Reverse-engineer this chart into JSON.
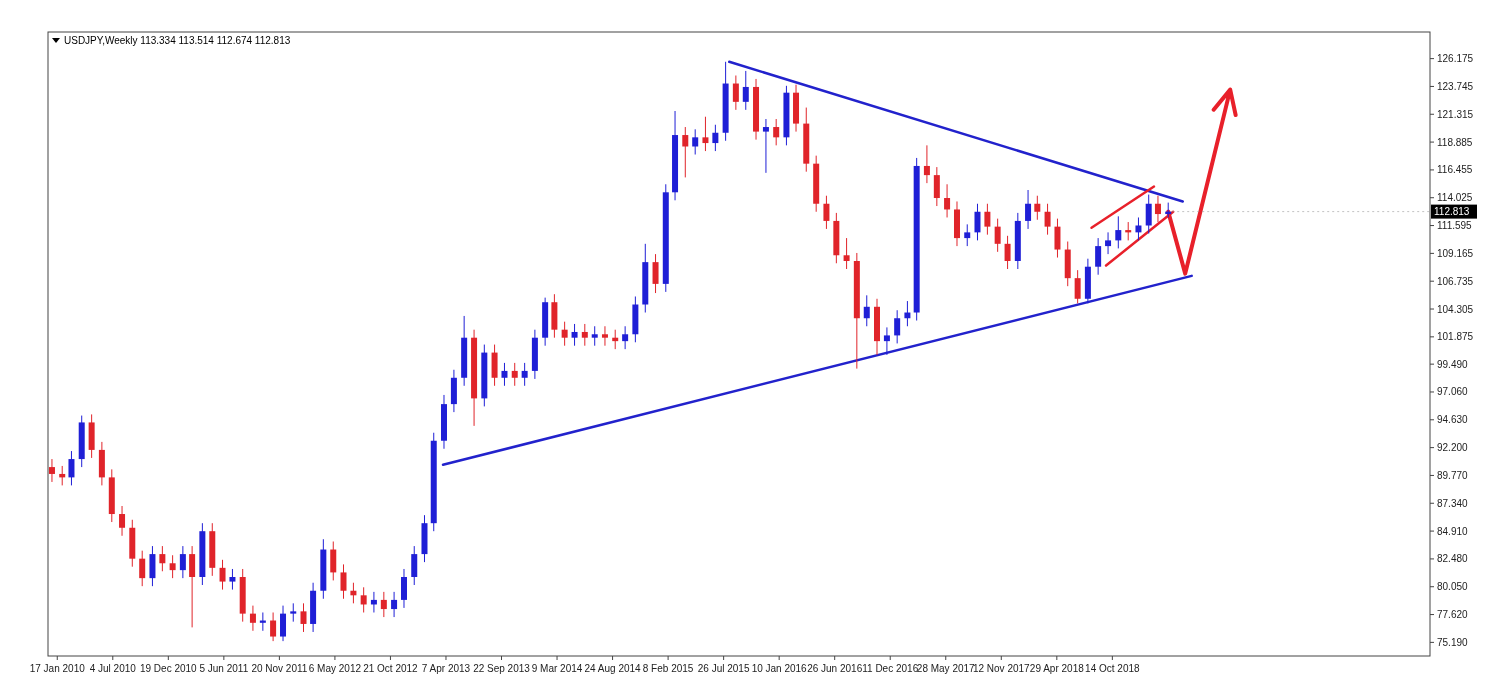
{
  "chart_data": {
    "type": "candlestick",
    "title": "USDJPY,Weekly  113.334 113.514 112.674 112.813",
    "x": [
      "2010-01",
      "2010-02",
      "2010-03",
      "2010-04",
      "2010-05",
      "2010-06",
      "2010-07",
      "2010-08",
      "2010-09",
      "2010-10",
      "2010-11",
      "2010-12",
      "2011-01",
      "2011-02",
      "2011-03",
      "2011-04",
      "2011-05",
      "2011-06",
      "2011-07",
      "2011-08",
      "2011-09",
      "2011-10",
      "2011-11",
      "2011-12",
      "2012-01",
      "2012-02",
      "2012-03",
      "2012-04",
      "2012-05",
      "2012-06",
      "2012-07",
      "2012-08",
      "2012-09",
      "2012-10",
      "2012-11",
      "2012-12",
      "2013-01",
      "2013-02",
      "2013-03",
      "2013-04",
      "2013-05",
      "2013-06",
      "2013-07",
      "2013-08",
      "2013-09",
      "2013-10",
      "2013-11",
      "2013-12",
      "2014-01",
      "2014-02",
      "2014-03",
      "2014-04",
      "2014-05",
      "2014-06",
      "2014-07",
      "2014-08",
      "2014-09",
      "2014-10",
      "2014-11",
      "2014-12",
      "2015-01",
      "2015-02",
      "2015-03",
      "2015-04",
      "2015-05",
      "2015-06",
      "2015-07",
      "2015-08",
      "2015-09",
      "2015-10",
      "2015-11",
      "2015-12",
      "2016-01",
      "2016-02",
      "2016-03",
      "2016-04",
      "2016-05",
      "2016-06",
      "2016-07",
      "2016-08",
      "2016-09",
      "2016-10",
      "2016-11",
      "2016-12",
      "2017-01",
      "2017-02",
      "2017-03",
      "2017-04",
      "2017-05",
      "2017-06",
      "2017-07",
      "2017-08",
      "2017-09",
      "2017-10",
      "2017-11",
      "2017-12",
      "2018-01",
      "2018-02",
      "2018-03",
      "2018-04",
      "2018-05",
      "2018-06",
      "2018-07",
      "2018-08",
      "2018-09",
      "2018-10",
      "2018-11",
      "2018-12",
      "2019-01",
      "2019-02",
      "2019-03",
      "2019-04"
    ],
    "ohlc": [
      [
        90.5,
        91.2,
        89.2,
        89.9
      ],
      [
        89.9,
        90.6,
        88.9,
        89.6
      ],
      [
        89.6,
        91.9,
        88.9,
        91.2
      ],
      [
        91.2,
        95.0,
        90.5,
        94.4
      ],
      [
        94.4,
        95.1,
        91.3,
        92.0
      ],
      [
        92.0,
        92.7,
        88.9,
        89.6
      ],
      [
        89.6,
        90.3,
        85.7,
        86.4
      ],
      [
        86.4,
        87.1,
        84.5,
        85.2
      ],
      [
        85.2,
        85.9,
        81.8,
        82.5
      ],
      [
        82.5,
        83.2,
        80.1,
        80.8
      ],
      [
        80.8,
        83.6,
        80.1,
        82.9
      ],
      [
        82.9,
        83.6,
        81.4,
        82.1
      ],
      [
        82.1,
        82.8,
        80.8,
        81.5
      ],
      [
        81.5,
        83.6,
        80.8,
        82.9
      ],
      [
        82.9,
        83.6,
        76.5,
        80.9
      ],
      [
        80.9,
        85.6,
        80.2,
        84.9
      ],
      [
        84.9,
        85.6,
        81.0,
        81.7
      ],
      [
        81.7,
        82.4,
        79.8,
        80.5
      ],
      [
        80.5,
        81.6,
        79.8,
        80.9
      ],
      [
        80.9,
        81.6,
        77.0,
        77.7
      ],
      [
        77.7,
        78.4,
        76.2,
        76.9
      ],
      [
        76.9,
        77.8,
        76.2,
        77.1
      ],
      [
        77.1,
        77.8,
        75.3,
        75.7
      ],
      [
        75.7,
        78.4,
        75.3,
        77.7
      ],
      [
        77.7,
        78.6,
        77.0,
        77.9
      ],
      [
        77.9,
        78.6,
        76.1,
        76.8
      ],
      [
        76.8,
        80.4,
        76.1,
        79.7
      ],
      [
        79.7,
        84.2,
        79.0,
        83.3
      ],
      [
        83.3,
        84.0,
        80.6,
        81.3
      ],
      [
        81.3,
        82.0,
        79.0,
        79.7
      ],
      [
        79.7,
        80.4,
        78.6,
        79.3
      ],
      [
        79.3,
        80.0,
        77.8,
        78.5
      ],
      [
        78.5,
        79.6,
        77.8,
        78.9
      ],
      [
        78.9,
        79.6,
        77.4,
        78.1
      ],
      [
        78.1,
        79.6,
        77.4,
        78.9
      ],
      [
        78.9,
        81.6,
        78.2,
        80.9
      ],
      [
        80.9,
        83.6,
        80.2,
        82.9
      ],
      [
        82.9,
        86.3,
        82.2,
        85.6
      ],
      [
        85.6,
        93.5,
        84.9,
        92.8
      ],
      [
        92.8,
        96.8,
        92.1,
        96.0
      ],
      [
        96.0,
        99.0,
        95.3,
        98.3
      ],
      [
        98.3,
        103.7,
        97.6,
        101.8
      ],
      [
        101.8,
        102.5,
        94.1,
        96.5
      ],
      [
        96.5,
        101.2,
        95.8,
        100.5
      ],
      [
        100.5,
        101.2,
        97.6,
        98.3
      ],
      [
        98.3,
        99.6,
        97.6,
        98.9
      ],
      [
        98.9,
        99.6,
        97.6,
        98.3
      ],
      [
        98.3,
        99.6,
        97.6,
        98.9
      ],
      [
        98.9,
        102.5,
        98.2,
        101.8
      ],
      [
        101.8,
        105.3,
        101.1,
        104.9
      ],
      [
        104.9,
        105.6,
        101.8,
        102.5
      ],
      [
        102.5,
        103.2,
        101.1,
        101.8
      ],
      [
        101.8,
        103.0,
        101.1,
        102.3
      ],
      [
        102.3,
        103.0,
        101.1,
        101.8
      ],
      [
        101.8,
        102.8,
        101.1,
        102.1
      ],
      [
        102.1,
        102.8,
        101.1,
        101.8
      ],
      [
        101.8,
        102.5,
        100.8,
        101.5
      ],
      [
        101.5,
        102.8,
        100.8,
        102.1
      ],
      [
        102.1,
        105.4,
        101.4,
        104.7
      ],
      [
        104.7,
        110.0,
        104.0,
        108.4
      ],
      [
        108.4,
        109.1,
        105.7,
        106.5
      ],
      [
        106.5,
        115.2,
        105.8,
        114.5
      ],
      [
        114.5,
        121.6,
        113.8,
        119.5
      ],
      [
        119.5,
        120.2,
        115.8,
        118.5
      ],
      [
        118.5,
        120.0,
        117.8,
        119.3
      ],
      [
        119.3,
        121.1,
        118.1,
        118.8
      ],
      [
        118.8,
        120.4,
        118.1,
        119.7
      ],
      [
        119.7,
        125.9,
        119.0,
        124.0
      ],
      [
        124.0,
        124.7,
        121.7,
        122.4
      ],
      [
        122.4,
        125.1,
        121.7,
        123.7
      ],
      [
        123.7,
        124.4,
        119.1,
        119.8
      ],
      [
        119.8,
        120.9,
        116.2,
        120.2
      ],
      [
        120.2,
        120.9,
        118.6,
        119.3
      ],
      [
        119.3,
        123.8,
        118.6,
        123.2
      ],
      [
        123.2,
        123.9,
        119.8,
        120.5
      ],
      [
        120.5,
        121.9,
        116.3,
        117.0
      ],
      [
        117.0,
        117.7,
        112.8,
        113.5
      ],
      [
        113.5,
        114.2,
        111.3,
        112.0
      ],
      [
        112.0,
        112.7,
        108.3,
        109.0
      ],
      [
        109.0,
        110.5,
        107.8,
        108.5
      ],
      [
        108.5,
        109.2,
        99.1,
        103.5
      ],
      [
        103.5,
        105.5,
        102.8,
        104.5
      ],
      [
        104.5,
        105.2,
        100.3,
        101.5
      ],
      [
        101.5,
        102.7,
        100.3,
        102.0
      ],
      [
        102.0,
        104.2,
        101.3,
        103.5
      ],
      [
        103.5,
        105.0,
        102.8,
        104.0
      ],
      [
        104.0,
        117.5,
        103.3,
        116.8
      ],
      [
        116.8,
        118.6,
        115.3,
        116.0
      ],
      [
        116.0,
        116.7,
        113.3,
        114.0
      ],
      [
        114.0,
        115.2,
        112.3,
        113.0
      ],
      [
        113.0,
        113.7,
        109.8,
        110.5
      ],
      [
        110.5,
        111.7,
        109.8,
        111.0
      ],
      [
        111.0,
        113.5,
        110.3,
        112.8
      ],
      [
        112.8,
        113.5,
        110.8,
        111.5
      ],
      [
        111.5,
        112.2,
        109.3,
        110.0
      ],
      [
        110.0,
        110.7,
        107.8,
        108.5
      ],
      [
        108.5,
        112.7,
        107.8,
        112.0
      ],
      [
        112.0,
        114.7,
        111.3,
        113.5
      ],
      [
        113.5,
        114.2,
        112.1,
        112.8
      ],
      [
        112.8,
        113.5,
        110.8,
        111.5
      ],
      [
        111.5,
        112.2,
        108.8,
        109.5
      ],
      [
        109.5,
        110.2,
        106.3,
        107.0
      ],
      [
        107.0,
        107.7,
        104.8,
        105.2
      ],
      [
        105.2,
        108.7,
        104.8,
        108.0
      ],
      [
        108.0,
        110.5,
        107.3,
        109.8
      ],
      [
        109.8,
        111.0,
        109.1,
        110.3
      ],
      [
        110.3,
        112.4,
        109.6,
        111.2
      ],
      [
        111.2,
        111.9,
        110.3,
        111.0
      ],
      [
        111.0,
        112.3,
        110.3,
        111.6
      ],
      [
        111.6,
        114.3,
        110.9,
        113.5
      ],
      [
        113.5,
        114.2,
        111.9,
        112.6
      ],
      [
        112.6,
        113.6,
        112.3,
        112.813
      ]
    ],
    "colors": [
      "#e0242a",
      "#e0242a",
      "#1f1fd6",
      "#1f1fd6",
      "#e0242a",
      "#e0242a",
      "#e0242a",
      "#e0242a",
      "#e0242a",
      "#e0242a",
      "#1f1fd6",
      "#e0242a",
      "#e0242a",
      "#1f1fd6",
      "#e0242a",
      "#1f1fd6",
      "#e0242a",
      "#e0242a",
      "#1f1fd6",
      "#e0242a",
      "#e0242a",
      "#1f1fd6",
      "#e0242a",
      "#1f1fd6",
      "#1f1fd6",
      "#e0242a",
      "#1f1fd6",
      "#1f1fd6",
      "#e0242a",
      "#e0242a",
      "#e0242a",
      "#e0242a",
      "#1f1fd6",
      "#e0242a",
      "#1f1fd6",
      "#1f1fd6",
      "#1f1fd6",
      "#1f1fd6",
      "#1f1fd6",
      "#1f1fd6",
      "#1f1fd6",
      "#1f1fd6",
      "#e0242a",
      "#1f1fd6",
      "#e0242a",
      "#1f1fd6",
      "#e0242a",
      "#1f1fd6",
      "#1f1fd6",
      "#1f1fd6",
      "#e0242a",
      "#e0242a",
      "#1f1fd6",
      "#e0242a",
      "#1f1fd6",
      "#e0242a",
      "#e0242a",
      "#1f1fd6",
      "#1f1fd6",
      "#1f1fd6",
      "#e0242a",
      "#1f1fd6",
      "#1f1fd6",
      "#e0242a",
      "#1f1fd6",
      "#e0242a",
      "#1f1fd6",
      "#1f1fd6",
      "#e0242a",
      "#1f1fd6",
      "#e0242a",
      "#1f1fd6",
      "#e0242a",
      "#1f1fd6",
      "#e0242a",
      "#e0242a",
      "#e0242a",
      "#e0242a",
      "#e0242a",
      "#e0242a",
      "#e0242a",
      "#1f1fd6",
      "#e0242a",
      "#1f1fd6",
      "#1f1fd6",
      "#1f1fd6",
      "#1f1fd6",
      "#e0242a",
      "#e0242a",
      "#e0242a",
      "#e0242a",
      "#1f1fd6",
      "#1f1fd6",
      "#e0242a",
      "#e0242a",
      "#e0242a",
      "#1f1fd6",
      "#1f1fd6",
      "#e0242a",
      "#e0242a",
      "#e0242a",
      "#e0242a",
      "#e0242a",
      "#1f1fd6",
      "#1f1fd6",
      "#1f1fd6",
      "#1f1fd6",
      "#e0242a",
      "#1f1fd6",
      "#1f1fd6",
      "#e0242a",
      "#1f1fd6"
    ],
    "series": [
      {
        "type": "line",
        "color": "#2222cc",
        "x": [
          "2013-03-29",
          "2019-06-11"
        ],
        "values": [
          90.7,
          107.2
        ]
      },
      {
        "type": "line",
        "color": "#2222cc",
        "x": [
          "2015-08-12",
          "2019-05-15"
        ],
        "values": [
          125.9,
          113.7
        ]
      },
      {
        "type": "line",
        "color": "#e8202a",
        "x": [
          "2018-08-12",
          "2019-02-17"
        ],
        "values": [
          111.4,
          115.0
        ]
      },
      {
        "type": "line",
        "color": "#e8202a",
        "x": [
          "2018-09-25",
          "2019-04-16"
        ],
        "values": [
          108.1,
          112.8
        ]
      }
    ],
    "annotations": [
      {
        "text": "112.813",
        "x": "2019-04",
        "y": 112.813
      }
    ],
    "xlim": [
      "2009-12-20",
      "2021-06-01"
    ],
    "xticks": [
      {
        "value": "2010-01-17",
        "label": "17 Jan 2010"
      },
      {
        "value": "2010-07-04",
        "label": "4 Jul 2010"
      },
      {
        "value": "2010-12-19",
        "label": "19 Dec 2010"
      },
      {
        "value": "2011-06-05",
        "label": "5 Jun 2011"
      },
      {
        "value": "2011-11-20",
        "label": "20 Nov 2011"
      },
      {
        "value": "2012-05-06",
        "label": "6 May 2012"
      },
      {
        "value": "2012-10-21",
        "label": "21 Oct 2012"
      },
      {
        "value": "2013-04-07",
        "label": "7 Apr 2013"
      },
      {
        "value": "2013-09-22",
        "label": "22 Sep 2013"
      },
      {
        "value": "2014-03-09",
        "label": "9 Mar 2014"
      },
      {
        "value": "2014-08-24",
        "label": "24 Aug 2014"
      },
      {
        "value": "2015-02-08",
        "label": "8 Feb 2015"
      },
      {
        "value": "2015-07-26",
        "label": "26 Jul 2015"
      },
      {
        "value": "2016-01-10",
        "label": "10 Jan 2016"
      },
      {
        "value": "2016-06-26",
        "label": "26 Jun 2016"
      },
      {
        "value": "2016-12-11",
        "label": "11 Dec 2016"
      },
      {
        "value": "2017-05-28",
        "label": "28 May 2017"
      },
      {
        "value": "2017-11-12",
        "label": "12 Nov 2017"
      },
      {
        "value": "2018-04-29",
        "label": "29 Apr 2018"
      },
      {
        "value": "2018-10-14",
        "label": "14 Oct 2018"
      }
    ],
    "ylim": [
      74.0,
      128.5
    ],
    "yticks": [
      {
        "value": 75.19,
        "label": "75.190"
      },
      {
        "value": 77.62,
        "label": "77.620"
      },
      {
        "value": 80.05,
        "label": "80.050"
      },
      {
        "value": 82.48,
        "label": "82.480"
      },
      {
        "value": 84.91,
        "label": "84.910"
      },
      {
        "value": 87.34,
        "label": "87.340"
      },
      {
        "value": 89.77,
        "label": "89.770"
      },
      {
        "value": 92.2,
        "label": "92.200"
      },
      {
        "value": 94.63,
        "label": "94.630"
      },
      {
        "value": 97.06,
        "label": "97.060"
      },
      {
        "value": 99.49,
        "label": "99.490"
      },
      {
        "value": 101.875,
        "label": "101.875"
      },
      {
        "value": 104.305,
        "label": "104.305"
      },
      {
        "value": 106.735,
        "label": "106.735"
      },
      {
        "value": 109.165,
        "label": "109.165"
      },
      {
        "value": 111.595,
        "label": "111.595"
      },
      {
        "value": 114.025,
        "label": "114.025"
      },
      {
        "value": 116.455,
        "label": "116.455"
      },
      {
        "value": 118.885,
        "label": "118.885"
      },
      {
        "value": 121.315,
        "label": "121.315"
      },
      {
        "value": 123.745,
        "label": "123.745"
      },
      {
        "value": 126.175,
        "label": "126.175"
      }
    ]
  }
}
